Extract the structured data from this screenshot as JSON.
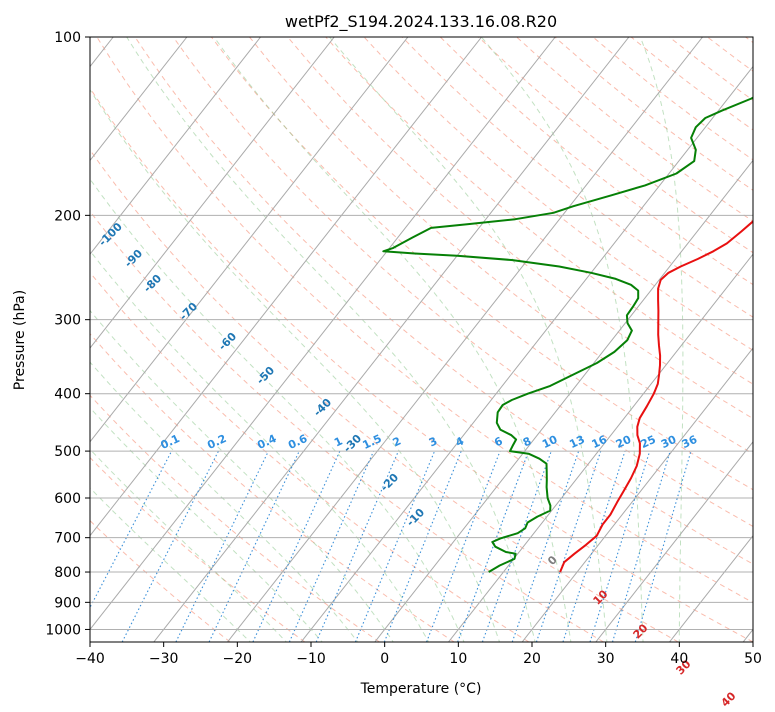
{
  "chart_data": {
    "type": "line",
    "title": "wetPf2_S194.2024.133.16.08.R20",
    "xlabel": "Temperature (°C)",
    "ylabel": "Pressure (hPa)",
    "xlim": [
      -40,
      50
    ],
    "ylim": [
      1050,
      100
    ],
    "y_scale": "log",
    "grid": true,
    "x_ticks": [
      "−40",
      "−30",
      "−20",
      "−10",
      "0",
      "10",
      "20",
      "30",
      "40",
      "50"
    ],
    "y_ticks": [
      "100",
      "200",
      "300",
      "400",
      "500",
      "600",
      "700",
      "800",
      "900",
      "1000"
    ],
    "isotherm_labels": [
      "-100",
      "-90",
      "-80",
      "-70",
      "-60",
      "-50",
      "-40",
      "-30",
      "-20",
      "-10",
      "0",
      "10",
      "20",
      "30",
      "40"
    ],
    "mixing_ratio_labels": [
      "0.1",
      "0.2",
      "0.4",
      "0.6",
      "1",
      "1.5",
      "2",
      "3",
      "4",
      "6",
      "8",
      "10",
      "13",
      "16",
      "20",
      "25",
      "30",
      "36"
    ],
    "series": [
      {
        "color": "#e81010",
        "points": [
          [
            17.7,
            800
          ],
          [
            17.2,
            770
          ],
          [
            17.7,
            745
          ],
          [
            18.3,
            720
          ],
          [
            18.8,
            695
          ],
          [
            18.4,
            665
          ],
          [
            18.4,
            640
          ],
          [
            18.0,
            610
          ],
          [
            17.7,
            585
          ],
          [
            17.3,
            555
          ],
          [
            16.8,
            530
          ],
          [
            15.9,
            505
          ],
          [
            14.8,
            485
          ],
          [
            13.6,
            470
          ],
          [
            12.7,
            455
          ],
          [
            12.1,
            440
          ],
          [
            11.8,
            420
          ],
          [
            11.4,
            400
          ],
          [
            10.9,
            385
          ],
          [
            10.0,
            370
          ],
          [
            9.2,
            358
          ],
          [
            8.2,
            345
          ],
          [
            7.0,
            332
          ],
          [
            5.7,
            318
          ],
          [
            4.4,
            303
          ],
          [
            3.2,
            290
          ],
          [
            2.0,
            278
          ],
          [
            0.8,
            266
          ],
          [
            0.2,
            257
          ],
          [
            0.5,
            250
          ],
          [
            1.5,
            244
          ],
          [
            3.0,
            237
          ],
          [
            4.3,
            230
          ],
          [
            5.3,
            223
          ],
          [
            6.0,
            213
          ],
          [
            6.6,
            203
          ],
          [
            7.3,
            192
          ],
          [
            8.0,
            181
          ],
          [
            9.0,
            170
          ],
          [
            10.3,
            160
          ],
          [
            11.8,
            152
          ],
          [
            13.0,
            145
          ],
          [
            13.3,
            138
          ],
          [
            13.3,
            130
          ],
          [
            13.1,
            122
          ],
          [
            13.2,
            116
          ],
          [
            13.6,
            111
          ],
          [
            14.8,
            107
          ],
          [
            16.0,
            104
          ],
          [
            16.7,
            102
          ],
          [
            17.1,
            100
          ]
        ]
      },
      {
        "color": "#068006",
        "points": [
          [
            8.0,
            800
          ],
          [
            8.8,
            780
          ],
          [
            10.1,
            760
          ],
          [
            9.7,
            745
          ],
          [
            8.2,
            740
          ],
          [
            6.2,
            725
          ],
          [
            5.3,
            712
          ],
          [
            6.0,
            702
          ],
          [
            7.8,
            688
          ],
          [
            8.3,
            675
          ],
          [
            8.0,
            660
          ],
          [
            8.7,
            645
          ],
          [
            9.8,
            630
          ],
          [
            9.3,
            618
          ],
          [
            8.1,
            600
          ],
          [
            6.8,
            575
          ],
          [
            6.1,
            560
          ],
          [
            5.1,
            540
          ],
          [
            4.3,
            525
          ],
          [
            2.8,
            515
          ],
          [
            0.8,
            505
          ],
          [
            -2.0,
            500
          ],
          [
            -2.2,
            490
          ],
          [
            -2.4,
            478
          ],
          [
            -3.5,
            470
          ],
          [
            -5.6,
            460
          ],
          [
            -6.8,
            448
          ],
          [
            -7.8,
            430
          ],
          [
            -7.9,
            418
          ],
          [
            -7.2,
            410
          ],
          [
            -5.7,
            400
          ],
          [
            -3.5,
            388
          ],
          [
            -1.4,
            370
          ],
          [
            0.4,
            355
          ],
          [
            1.6,
            340
          ],
          [
            2.1,
            325
          ],
          [
            1.7,
            313
          ],
          [
            0.3,
            304
          ],
          [
            -0.6,
            295
          ],
          [
            -0.7,
            285
          ],
          [
            -0.9,
            276
          ],
          [
            -1.7,
            268
          ],
          [
            -3.3,
            262
          ],
          [
            -6.0,
            256
          ],
          [
            -10.0,
            250
          ],
          [
            -15.0,
            244
          ],
          [
            -22.0,
            238
          ],
          [
            -30.0,
            234
          ],
          [
            -36.0,
            232
          ],
          [
            -40.5,
            230
          ],
          [
            -39.5,
            227
          ],
          [
            -38.0,
            218
          ],
          [
            -36.5,
            210
          ],
          [
            -32.0,
            207
          ],
          [
            -26.0,
            203
          ],
          [
            -21.5,
            198
          ],
          [
            -19.5,
            193
          ],
          [
            -15.5,
            185
          ],
          [
            -12.0,
            178
          ],
          [
            -9.0,
            170
          ],
          [
            -7.9,
            162
          ],
          [
            -8.9,
            155
          ],
          [
            -10.8,
            148
          ],
          [
            -11.3,
            142
          ],
          [
            -11.0,
            137
          ],
          [
            -9.5,
            133
          ],
          [
            -6.8,
            127
          ],
          [
            -5.0,
            120
          ],
          [
            -3.7,
            113
          ],
          [
            -2.4,
            106
          ],
          [
            -1.3,
            100
          ]
        ]
      }
    ]
  }
}
